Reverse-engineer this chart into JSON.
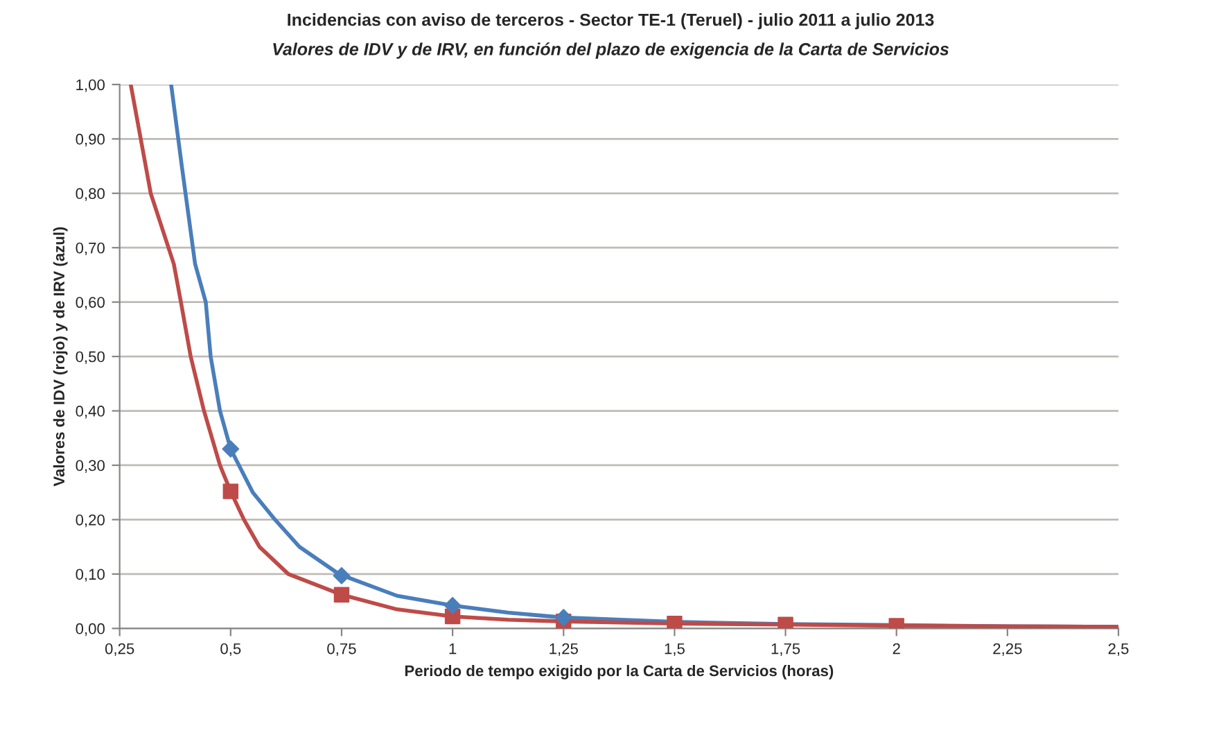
{
  "chart_data": {
    "type": "line",
    "title": "Incidencias con aviso de terceros - Sector TE-1 (Teruel) - julio 2011 a julio 2013",
    "subtitle": "Valores de IDV y de IRV, en función del plazo de exigencia de la Carta de Servicios",
    "xlabel": "Periodo de tempo exigido por la Carta de Servicios (horas)",
    "ylabel": "Valores de IDV (rojo) y de IRV (azul)",
    "series": [
      {
        "color": "#4a7ebb",
        "marker": "none",
        "x": [
          0.366,
          0.39,
          0.42,
          0.444,
          0.455,
          0.476,
          0.5,
          0.55,
          0.6,
          0.655,
          0.744,
          0.875,
          1,
          1.125,
          1.25,
          1.5,
          1.75,
          2,
          2.25,
          2.5
        ],
        "values": [
          1.0,
          0.85,
          0.67,
          0.6,
          0.5,
          0.4,
          0.33,
          0.25,
          0.2,
          0.15,
          0.1,
          0.06,
          0.042,
          0.029,
          0.02,
          0.012,
          0.008,
          0.006,
          0.004,
          0.003
        ]
      },
      {
        "color": "#be4b48",
        "marker": "none",
        "x": [
          0.275,
          0.32,
          0.372,
          0.388,
          0.41,
          0.44,
          0.476,
          0.5,
          0.53,
          0.565,
          0.63,
          0.75,
          0.875,
          1,
          1.125,
          1.25,
          1.5,
          1.75,
          2,
          2.25,
          2.5
        ],
        "values": [
          1.0,
          0.8,
          0.67,
          0.6,
          0.5,
          0.4,
          0.3,
          0.252,
          0.2,
          0.15,
          0.1,
          0.062,
          0.035,
          0.022,
          0.016,
          0.013,
          0.009,
          0.007,
          0.005,
          0.004,
          0.003
        ]
      },
      {
        "type": "scatter",
        "color": "#be4b48",
        "marker": "square",
        "x": [
          0.5,
          0.75,
          1,
          1.25,
          1.5,
          1.75,
          2
        ],
        "values": [
          0.252,
          0.062,
          0.022,
          0.013,
          0.009,
          0.007,
          0.005
        ]
      },
      {
        "type": "scatter",
        "color": "#4a7ebb",
        "marker": "diamond",
        "x": [
          0.5,
          0.75,
          1,
          1.25
        ],
        "values": [
          0.33,
          0.097,
          0.042,
          0.02
        ]
      }
    ],
    "xlim": [
      0.25,
      2.5
    ],
    "xticks": [
      {
        "value": 0.25,
        "label": "0,25"
      },
      {
        "value": 0.5,
        "label": "0,5"
      },
      {
        "value": 0.75,
        "label": "0,75"
      },
      {
        "value": 1,
        "label": "1"
      },
      {
        "value": 1.25,
        "label": "1,25"
      },
      {
        "value": 1.5,
        "label": "1,5"
      },
      {
        "value": 1.75,
        "label": "1,75"
      },
      {
        "value": 2,
        "label": "2"
      },
      {
        "value": 2.25,
        "label": "2,25"
      },
      {
        "value": 2.5,
        "label": "2,5"
      }
    ],
    "ylim": [
      0,
      1
    ],
    "yticks": [
      {
        "value": 0,
        "label": "0,00"
      },
      {
        "value": 0.1,
        "label": "0,10"
      },
      {
        "value": 0.2,
        "label": "0,20"
      },
      {
        "value": 0.3,
        "label": "0,30"
      },
      {
        "value": 0.4,
        "label": "0,40"
      },
      {
        "value": 0.5,
        "label": "0,50"
      },
      {
        "value": 0.6,
        "label": "0,60"
      },
      {
        "value": 0.7,
        "label": "0,70"
      },
      {
        "value": 0.8,
        "label": "0,80"
      },
      {
        "value": 0.9,
        "label": "0,90"
      },
      {
        "value": 1,
        "label": "1,00"
      }
    ],
    "grid": "y",
    "legend": false
  }
}
